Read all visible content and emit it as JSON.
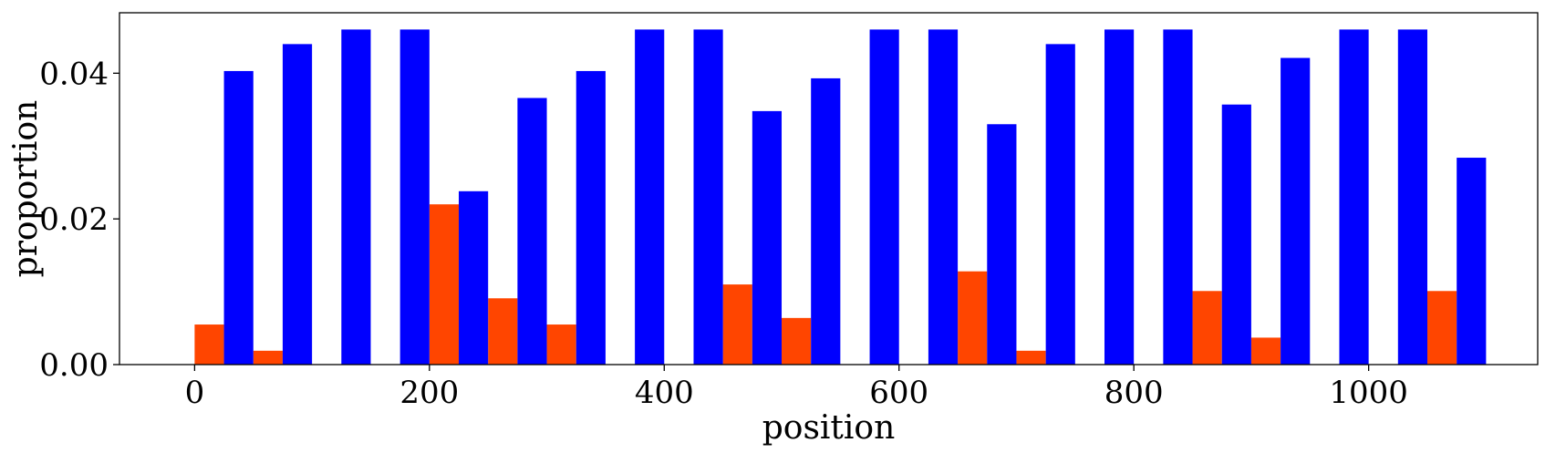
{
  "chart_data": {
    "type": "bar",
    "xlabel": "position",
    "ylabel": "proportion",
    "xlim": [
      -64,
      1144
    ],
    "ylim": [
      0,
      0.0483
    ],
    "xticks": [
      0,
      200,
      400,
      600,
      800,
      1000
    ],
    "xtick_labels": [
      "0",
      "200",
      "400",
      "600",
      "800",
      "1000"
    ],
    "yticks": [
      0,
      0.02,
      0.04
    ],
    "ytick_labels": [
      "0.00",
      "0.02",
      "0.04"
    ],
    "bar_width": 25,
    "grid": false,
    "series": [
      {
        "color": "#ff4500",
        "x": [
          0,
          50,
          100,
          150,
          200,
          250,
          300,
          350,
          400,
          450,
          500,
          550,
          600,
          650,
          700,
          750,
          800,
          850,
          900,
          950,
          1000,
          1050
        ],
        "values": [
          0.0055,
          0.0019,
          0,
          0,
          0.022,
          0.0091,
          0.0055,
          0,
          0,
          0.011,
          0.0064,
          0,
          0,
          0.0128,
          0.0019,
          0,
          0,
          0.0101,
          0.0037,
          0,
          0,
          0.0101
        ]
      },
      {
        "color": "#0000ff",
        "x": [
          25,
          75,
          125,
          175,
          225,
          275,
          325,
          375,
          425,
          475,
          525,
          575,
          625,
          675,
          725,
          775,
          825,
          875,
          925,
          975,
          1025,
          1075
        ],
        "values": [
          0.0403,
          0.044,
          0.046,
          0.046,
          0.0238,
          0.0366,
          0.0403,
          0.046,
          0.046,
          0.0348,
          0.0393,
          0.046,
          0.046,
          0.033,
          0.044,
          0.046,
          0.046,
          0.0357,
          0.0421,
          0.046,
          0.046,
          0.0284
        ]
      }
    ]
  }
}
